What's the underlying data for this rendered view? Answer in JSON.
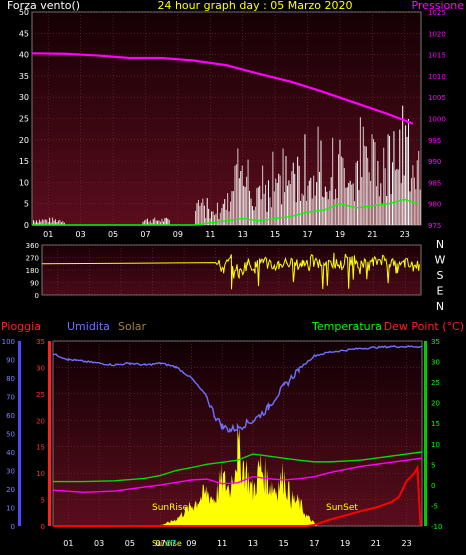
{
  "chart_data": [
    {
      "type": "line",
      "panel": "wind-pressure",
      "title": "24 hour graph day : 05 Marzo 2020",
      "left_axis_label": "Forza vento()",
      "right_axis_label": "Pressione",
      "x_ticks": [
        "01",
        "03",
        "05",
        "07",
        "09",
        "11",
        "13",
        "15",
        "17",
        "19",
        "21",
        "23"
      ],
      "y_left_ticks": [
        0,
        5,
        10,
        15,
        20,
        25,
        30,
        35,
        40,
        45,
        50
      ],
      "y_left_range": [
        0,
        50
      ],
      "y_right_ticks": [
        975,
        980,
        985,
        990,
        995,
        1000,
        1005,
        1010,
        1015,
        1020,
        1025
      ],
      "y_right_range": [
        975,
        1025
      ],
      "series": [
        {
          "name": "Pressione",
          "color": "#ff00ff",
          "axis": "right",
          "x": [
            0,
            2,
            4,
            6,
            8,
            10,
            12,
            14,
            16,
            18,
            20,
            22,
            23.5
          ],
          "values": [
            1015.3,
            1015.2,
            1014.8,
            1014.2,
            1014.2,
            1013.6,
            1012.5,
            1010.5,
            1008.6,
            1006.2,
            1003.6,
            1001.0,
            998.8
          ]
        },
        {
          "name": "",
          "color": "#00ff00",
          "axis": "left",
          "x": [
            0,
            10,
            11,
            12,
            13,
            14,
            15,
            16,
            17,
            18,
            19,
            20,
            21,
            22,
            23,
            23.8
          ],
          "values": [
            0,
            0,
            0.5,
            1,
            1.5,
            1,
            1.5,
            2,
            3,
            3.5,
            5,
            4,
            4.5,
            5,
            6,
            5
          ]
        }
      ],
      "wind_bars_color": "#ffffff",
      "gust_color": "#c8a0a0"
    },
    {
      "type": "line",
      "panel": "wind-direction",
      "x_ticks": [
        "01",
        "03",
        "05",
        "07",
        "09",
        "11",
        "13",
        "15",
        "17",
        "19",
        "21",
        "23"
      ],
      "y_ticks": [
        0,
        90,
        180,
        270,
        360
      ],
      "y_range": [
        0,
        360
      ],
      "compass_labels": [
        "N",
        "W",
        "S",
        "E",
        "N"
      ],
      "series": [
        {
          "name": "",
          "color": "#ffff00",
          "x": [
            0,
            11,
            11.5,
            12,
            12.5,
            13,
            13.5,
            14,
            14.5,
            15,
            15.5,
            16,
            16.5,
            17,
            17.5,
            18,
            18.5,
            19,
            19.5,
            20,
            20.5,
            21,
            21.5,
            22,
            22.5,
            23,
            23.5,
            23.9
          ],
          "values": [
            225,
            225,
            190,
            260,
            150,
            230,
            200,
            260,
            200,
            220,
            240,
            210,
            230,
            250,
            220,
            240,
            230,
            210,
            260,
            240,
            210,
            230,
            260,
            240,
            190,
            230,
            200,
            220
          ]
        }
      ]
    },
    {
      "type": "line",
      "panel": "rain-humidity-solar-temperature",
      "labels": {
        "rain": "Pioggia",
        "humidity": "Umidita",
        "solar": "Solar",
        "temperature": "Temperatura",
        "dewpoint": "Dew Point (°C)"
      },
      "x_ticks": [
        "01",
        "03",
        "05",
        "07",
        "09",
        "11",
        "13",
        "15",
        "17",
        "19",
        "21",
        "23"
      ],
      "y_humidity_ticks": [
        0,
        10,
        20,
        30,
        40,
        50,
        60,
        70,
        80,
        90,
        100
      ],
      "y_humidity_range": [
        0,
        100
      ],
      "y_rain_ticks": [
        0,
        5,
        10,
        15,
        20,
        25,
        30,
        35
      ],
      "y_rain_range": [
        0,
        35
      ],
      "y_temp_ticks": [
        -10,
        -5,
        0,
        5,
        10,
        15,
        20,
        25,
        30,
        35
      ],
      "y_temp_range": [
        -10,
        35
      ],
      "annotations": [
        "SunRise",
        "SunSet",
        "Sunrise",
        "07"
      ],
      "series": [
        {
          "name": "Umidita",
          "color": "#7070ff",
          "axis": "humidity",
          "x": [
            0,
            1,
            2,
            3,
            4,
            5,
            6,
            7,
            8,
            9,
            10,
            10.5,
            11,
            11.5,
            12,
            12.5,
            13,
            13.5,
            14,
            14.5,
            15,
            16,
            17,
            18,
            20,
            22,
            24
          ],
          "values": [
            93,
            90,
            89,
            88,
            87,
            88,
            87,
            88,
            86,
            80,
            70,
            60,
            54,
            52,
            53,
            55,
            57,
            60,
            64,
            70,
            75,
            85,
            92,
            94,
            96,
            97,
            97
          ]
        },
        {
          "name": "Temperatura",
          "color": "#00dd00",
          "axis": "temp",
          "x": [
            0,
            2,
            4,
            6,
            7,
            8,
            9,
            10,
            11,
            12,
            13,
            14,
            15,
            16,
            17,
            18,
            20,
            22,
            24
          ],
          "values": [
            0.8,
            0.8,
            1.0,
            1.6,
            2.3,
            3.5,
            4.2,
            5.0,
            5.5,
            6.0,
            7.5,
            7.0,
            6.5,
            6.0,
            5.6,
            5.6,
            6.0,
            7.0,
            8.0
          ]
        },
        {
          "name": "Dew Point (°C)",
          "color": "#ff00ff",
          "axis": "temp",
          "x": [
            0,
            2,
            4,
            6,
            7,
            8,
            9,
            10,
            11,
            12,
            13,
            14,
            15,
            16,
            17,
            18,
            20,
            22,
            24
          ],
          "values": [
            -1.3,
            -1.8,
            -1.5,
            -0.5,
            0.0,
            0.6,
            1.2,
            1.4,
            0.3,
            0.5,
            2.0,
            1.5,
            1.2,
            1.5,
            2.0,
            3.0,
            4.5,
            5.5,
            6.5
          ]
        },
        {
          "name": "Pioggia",
          "color": "#ff0000",
          "axis": "rain",
          "x": [
            0,
            16.5,
            17,
            18,
            19,
            20,
            21,
            22,
            22.5,
            23,
            23.5,
            23.7,
            23.9
          ],
          "values": [
            0,
            0,
            0.2,
            1.2,
            2.0,
            2.8,
            3.5,
            4.5,
            5.5,
            8.5,
            10,
            11,
            0
          ]
        },
        {
          "name": "Solar",
          "color": "#ffff00",
          "axis": "humidity",
          "area": true,
          "x": [
            6.8,
            7.5,
            8,
            8.5,
            9,
            9.5,
            10,
            10.5,
            11,
            11.5,
            12,
            12.3,
            12.6,
            13,
            13.5,
            14,
            14.5,
            15,
            15.5,
            16,
            16.5,
            17.2
          ],
          "values": [
            0,
            2,
            4,
            8,
            12,
            16,
            20,
            16,
            28,
            22,
            46,
            38,
            32,
            20,
            36,
            26,
            22,
            30,
            16,
            14,
            6,
            0
          ]
        }
      ]
    }
  ]
}
